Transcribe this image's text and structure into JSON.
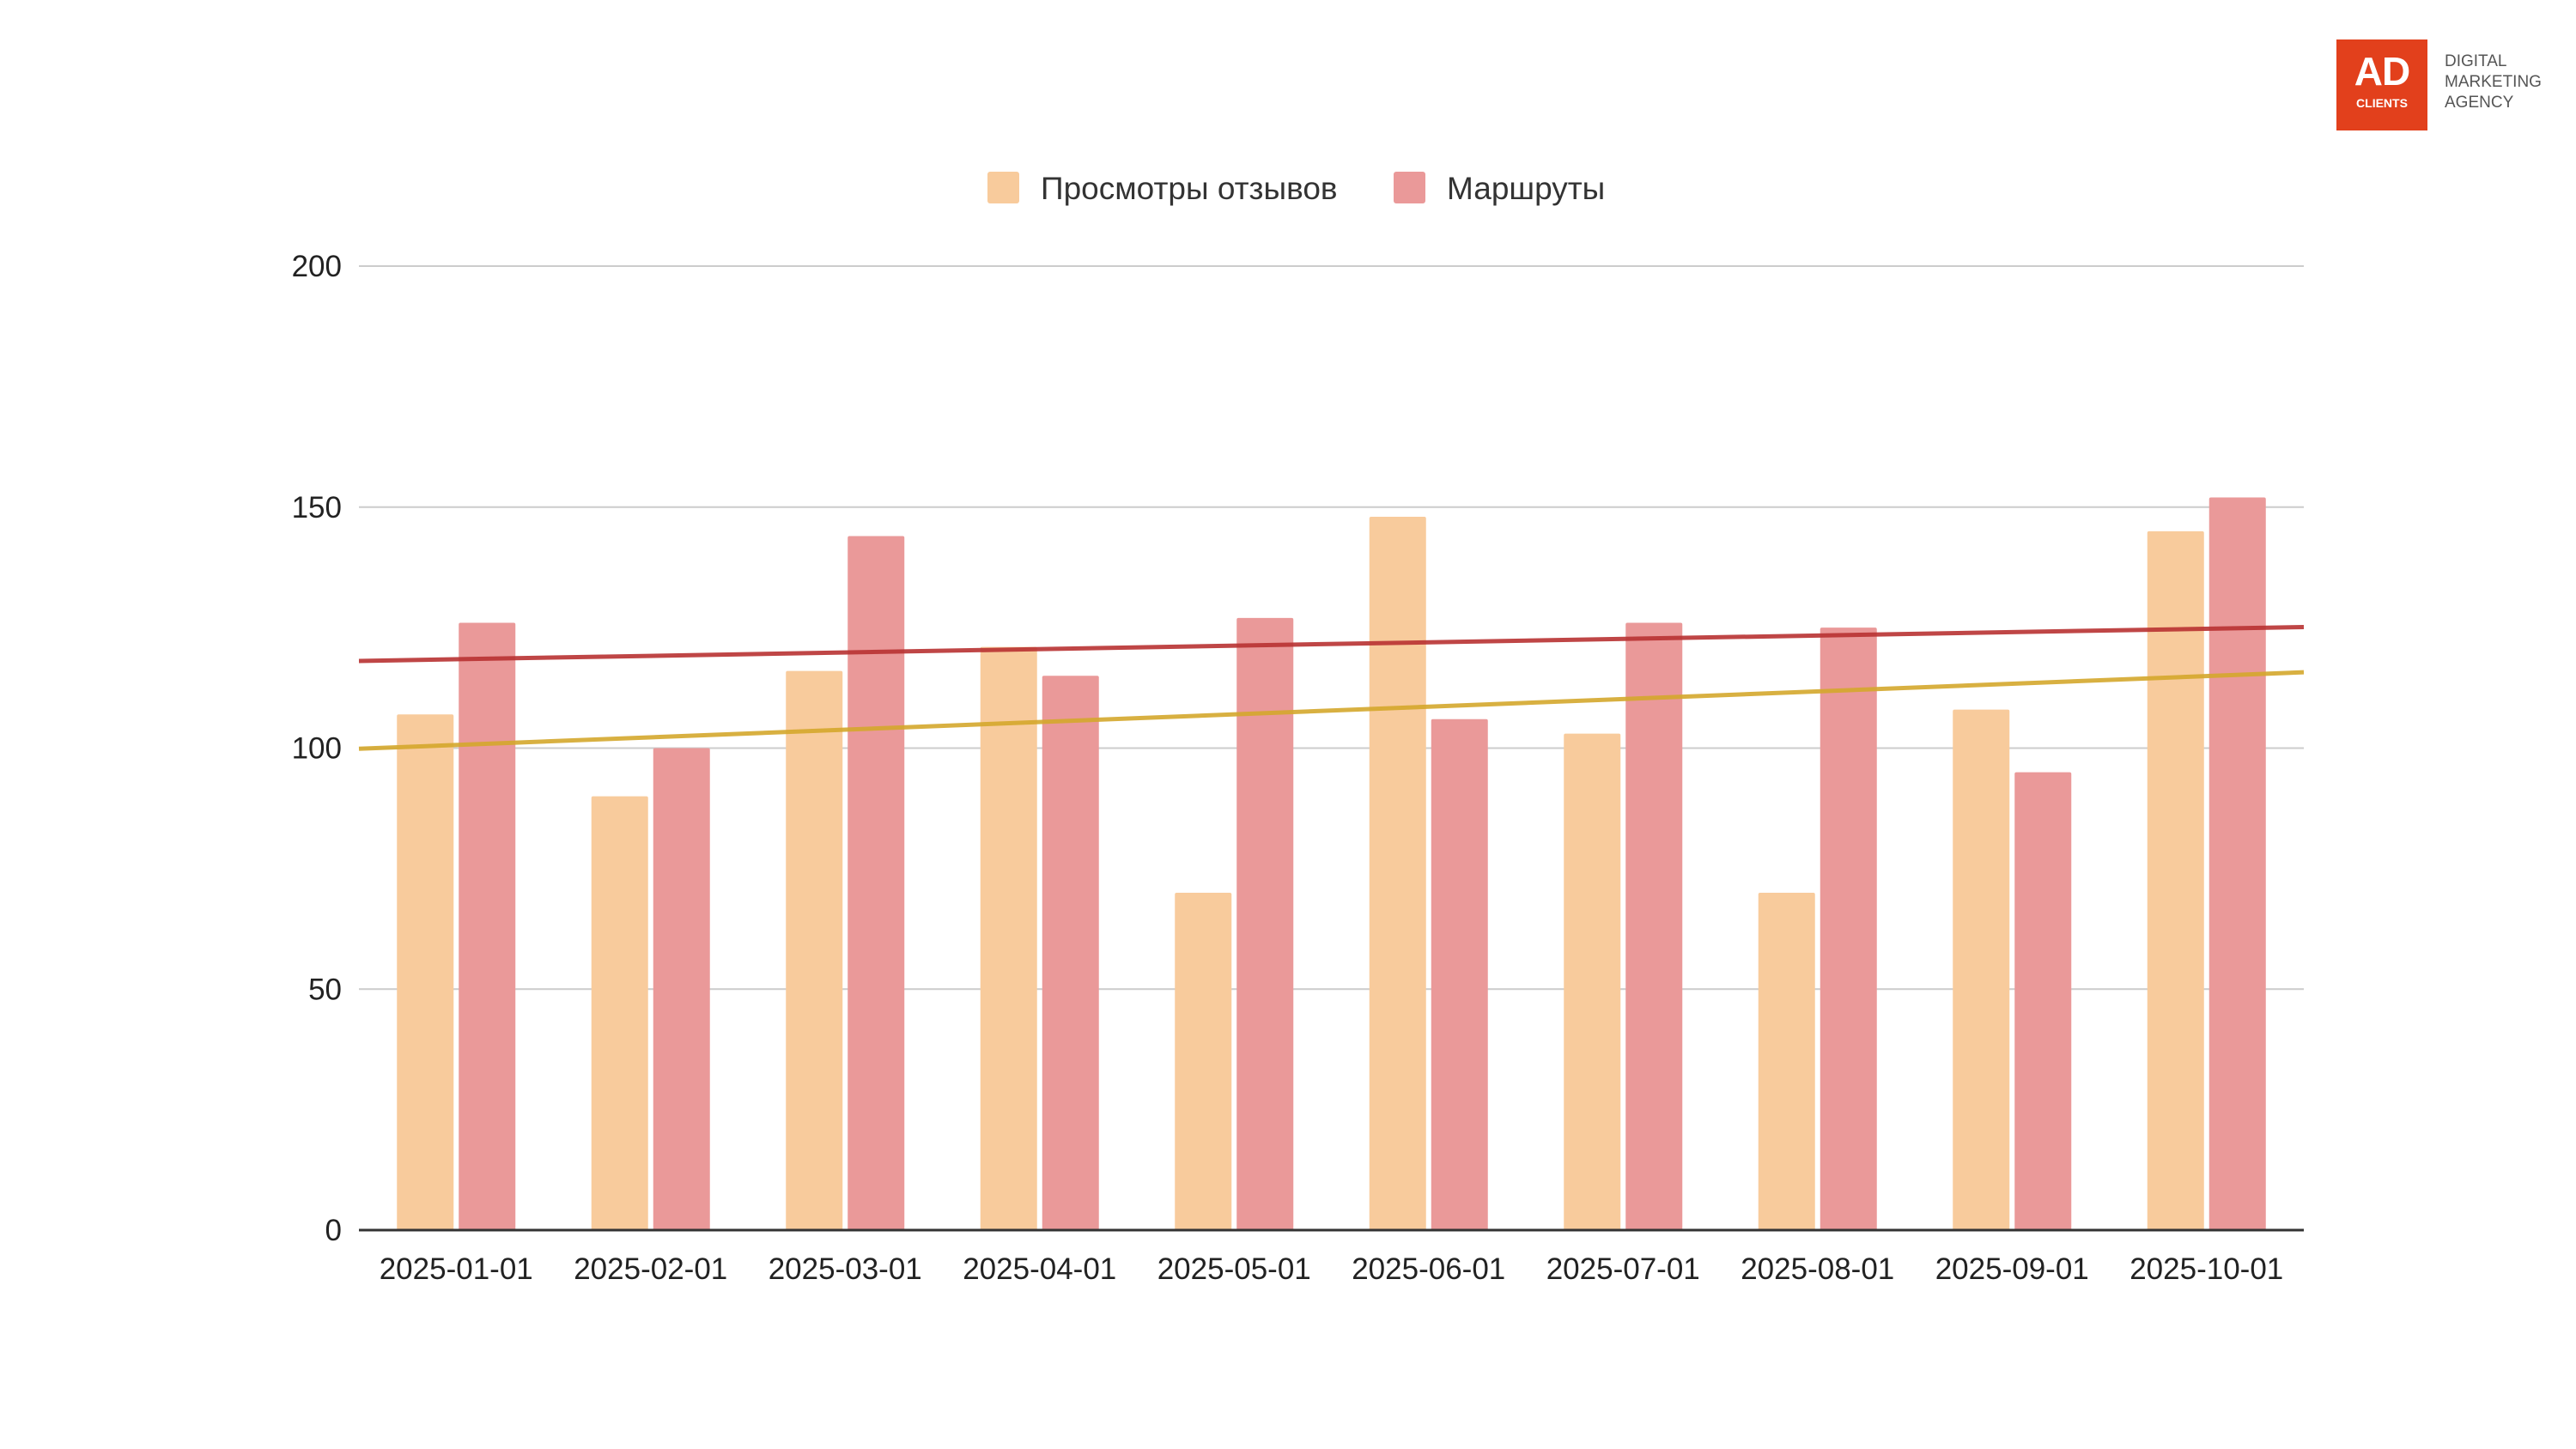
{
  "brand": {
    "logo_main": "AD",
    "logo_sub": "CLIENTS",
    "tagline": [
      "DIGITAL",
      "MARKETING",
      "AGENCY"
    ]
  },
  "chart_data": {
    "type": "bar",
    "title": "",
    "xlabel": "",
    "ylabel": "",
    "categories": [
      "2025-01-01",
      "2025-02-01",
      "2025-03-01",
      "2025-04-01",
      "2025-05-01",
      "2025-06-01",
      "2025-07-01",
      "2025-08-01",
      "2025-09-01",
      "2025-10-01"
    ],
    "series": [
      {
        "name": "Просмотры отзывов",
        "color": "#f8cb9c",
        "trendline_color": "#d4a72c",
        "values": [
          107,
          90,
          116,
          121,
          70,
          148,
          103,
          70,
          108,
          145
        ]
      },
      {
        "name": "Маршруты",
        "color": "#ea9999",
        "trendline_color": "#b83232",
        "values": [
          126,
          100,
          144,
          115,
          127,
          106,
          126,
          125,
          95,
          152
        ]
      }
    ],
    "trendlines": true,
    "ylim": [
      0,
      200
    ],
    "yticks": [
      0,
      50,
      100,
      150,
      200
    ],
    "grid": true,
    "legend_position": "top"
  }
}
